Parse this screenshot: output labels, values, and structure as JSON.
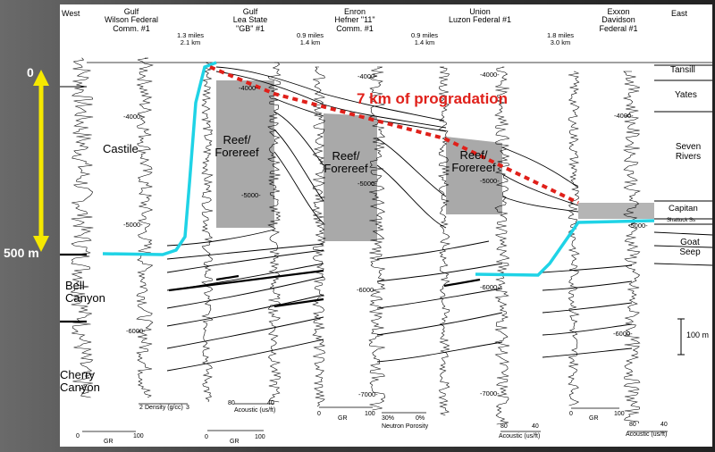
{
  "scale_bar": {
    "top": "0",
    "bottom": "500 m"
  },
  "directions": {
    "west": "West",
    "east": "East"
  },
  "wells": [
    {
      "name": "Gulf\nWilson Federal\nComm. #1"
    },
    {
      "name": "Gulf\nLea State\n\"GB\" #1"
    },
    {
      "name": "Enron\nHefner \"11\"\nComm. #1"
    },
    {
      "name": "Union\nLuzon Federal #1"
    },
    {
      "name": "Exxon\nDavidson\nFederal #1"
    }
  ],
  "distances": [
    "1.3 miles\n2.1 km",
    "0.9 miles\n1.4 km",
    "0.9 miles\n1.4 km",
    "1.8 miles\n3.0 km"
  ],
  "annotation": "7 km of progradation",
  "units_left": {
    "castile": "Castile",
    "bell": "Bell\nCanyon",
    "cherry": "Cherry\nCanyon"
  },
  "units_right": {
    "tansill": "Tansill",
    "yates": "Yates",
    "seven_rivers": "Seven\nRivers",
    "capitan": "Capitan",
    "shattuck": "Shattuck Ss",
    "goat_seep": "Goat\nSeep"
  },
  "reef_label": "Reef/\nForereef",
  "depth_labels": {
    "w1": [
      "-4000-",
      "-5000-",
      "-6000-"
    ],
    "w2": [
      "-4000-",
      "-5000-"
    ],
    "w3": [
      "-4000-",
      "-5000-",
      "-6000-",
      "-7000-"
    ],
    "w4": [
      "-4000-",
      "-5000-",
      "-6000-",
      "-7000-"
    ],
    "w5": [
      "-4000-",
      "-5000-",
      "-6000-"
    ]
  },
  "axis_labels": {
    "gr": "GR",
    "density": "Density (g/cc)",
    "acoustic": "Acoustic (us/ft)",
    "neutron": "Neutron Porosity",
    "density_ticks": [
      "2",
      "3"
    ],
    "gr_ticks": [
      "0",
      "100"
    ],
    "ac_ticks_a": [
      "80",
      "40"
    ],
    "ac_ticks_b": [
      "80",
      "40"
    ],
    "ac_ticks_c": [
      "80",
      "40"
    ],
    "neutron_ticks": [
      "30%",
      "0%"
    ]
  },
  "vertical_scale": "100 m",
  "colors": {
    "cyan": "#1fd3e6",
    "red": "#e0201a",
    "yellow": "#f5e800",
    "reef_gray": "#a9a9a9",
    "capitan_gray": "#b5b5b5"
  }
}
